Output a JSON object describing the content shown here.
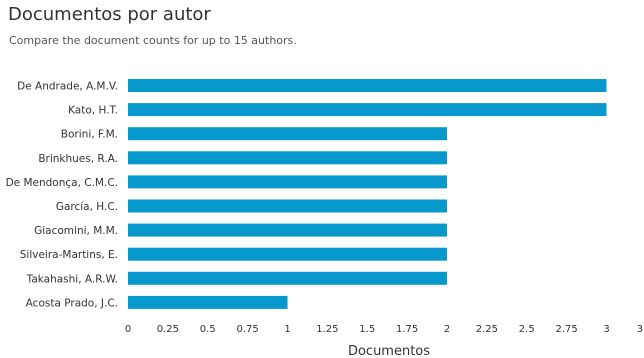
{
  "header": {
    "title": "Documentos por autor",
    "subtitle": "Compare the document counts for up to 15 authors."
  },
  "chart_data": {
    "type": "bar",
    "orientation": "horizontal",
    "categories": [
      "De Andrade, A.M.V.",
      "Kato, H.T.",
      "Borini, F.M.",
      "Brinkhues, R.A.",
      "De Mendonça, C.M.C.",
      "García, H.C.",
      "Giacomini, M.M.",
      "Silveira-Martins, E.",
      "Takahashi, A.R.W.",
      "Acosta Prado, J.C."
    ],
    "values": [
      3,
      3,
      2,
      2,
      2,
      2,
      2,
      2,
      2,
      1
    ],
    "xlabel": "Documentos",
    "xlim": [
      0,
      3.2
    ],
    "xticks": [
      "0",
      "0.25",
      "0.5",
      "0.75",
      "1",
      "1.25",
      "1.5",
      "1.75",
      "2",
      "2.25",
      "2.5",
      "2.75",
      "3",
      "3…"
    ],
    "bar_color": "#0899cc",
    "grid": false
  }
}
